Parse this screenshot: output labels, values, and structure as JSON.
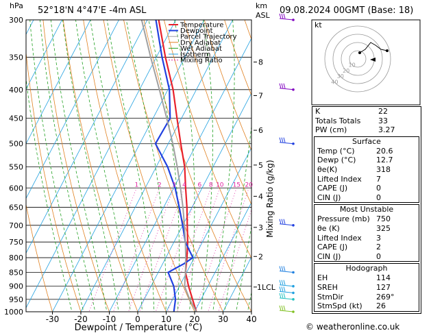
{
  "header": {
    "location": "52°18'N  4°47'E  -4m  ASL",
    "datetime": "09.08.2024  00GMT  (Base: 18)",
    "pressure_unit": "hPa",
    "height_unit": "km",
    "height_unit2": "ASL"
  },
  "chart_data": {
    "type": "line",
    "title": "52°18'N  4°47'E  -4m  ASL",
    "xlabel": "Dewpoint / Temperature (°C)",
    "ylabel": "hPa",
    "right_axis_label": "Mixing Ratio (g/kg)",
    "x_ticks": [
      -30,
      -20,
      -10,
      0,
      10,
      20,
      30,
      40
    ],
    "pressure_levels": [
      300,
      350,
      400,
      450,
      500,
      550,
      600,
      650,
      700,
      750,
      800,
      850,
      900,
      950,
      1000
    ],
    "height_ticks": [
      {
        "label": "8",
        "p": 357
      },
      {
        "label": "7",
        "p": 410
      },
      {
        "label": "6",
        "p": 473
      },
      {
        "label": "5",
        "p": 546
      },
      {
        "label": "4",
        "p": 621
      },
      {
        "label": "3",
        "p": 706
      },
      {
        "label": "2",
        "p": 796
      },
      {
        "label": "1LCL",
        "p": 903
      }
    ],
    "mixing_ratio_labels": [
      "1",
      "2",
      "3",
      "4",
      "6",
      "8",
      "10",
      "15",
      "20",
      "25"
    ],
    "legend": [
      "Temperature",
      "Dewpoint",
      "Parcel Trajectory",
      "Dry Adiabat",
      "Wet Adiabat",
      "Isotherm",
      "Mixing Ratio"
    ],
    "series": [
      {
        "name": "Temperature",
        "color": "#e8202a",
        "points": [
          [
            1000,
            20.6
          ],
          [
            950,
            17.0
          ],
          [
            900,
            13.2
          ],
          [
            850,
            9.6
          ],
          [
            800,
            7.4
          ],
          [
            750,
            4.8
          ],
          [
            700,
            1.6
          ],
          [
            650,
            -1.8
          ],
          [
            600,
            -5.8
          ],
          [
            550,
            -10.0
          ],
          [
            500,
            -15.6
          ],
          [
            450,
            -21.6
          ],
          [
            400,
            -28.2
          ],
          [
            350,
            -36.8
          ],
          [
            300,
            -46.0
          ]
        ]
      },
      {
        "name": "Dewpoint",
        "color": "#2040e0",
        "points": [
          [
            1000,
            12.7
          ],
          [
            950,
            11.0
          ],
          [
            900,
            8.0
          ],
          [
            850,
            3.5
          ],
          [
            820,
            7.5
          ],
          [
            800,
            9.5
          ],
          [
            750,
            4.0
          ],
          [
            700,
            0.0
          ],
          [
            650,
            -4.5
          ],
          [
            600,
            -9.5
          ],
          [
            550,
            -16.0
          ],
          [
            500,
            -24.5
          ],
          [
            450,
            -24.0
          ],
          [
            400,
            -29.5
          ],
          [
            350,
            -38.0
          ],
          [
            300,
            -47.0
          ]
        ]
      },
      {
        "name": "Parcel Trajectory",
        "color": "#a0a0a0",
        "points": [
          [
            1000,
            20.6
          ],
          [
            950,
            16.0
          ],
          [
            900,
            11.8
          ],
          [
            850,
            9.6
          ],
          [
            800,
            7.0
          ],
          [
            750,
            4.0
          ],
          [
            700,
            0.6
          ],
          [
            650,
            -3.2
          ],
          [
            600,
            -7.6
          ],
          [
            550,
            -12.6
          ],
          [
            500,
            -18.4
          ],
          [
            450,
            -25.2
          ],
          [
            400,
            -33.0
          ],
          [
            350,
            -42.0
          ],
          [
            300,
            -52.0
          ]
        ]
      }
    ],
    "wind_barbs": [
      {
        "p": 300,
        "color": "#8000c0"
      },
      {
        "p": 400,
        "color": "#8000c0"
      },
      {
        "p": 500,
        "color": "#2040e0"
      },
      {
        "p": 700,
        "color": "#2040e0"
      },
      {
        "p": 850,
        "color": "#2080e0"
      },
      {
        "p": 900,
        "color": "#20a0e0"
      },
      {
        "p": 925,
        "color": "#20a0e0"
      },
      {
        "p": 950,
        "color": "#20c0c0"
      },
      {
        "p": 1000,
        "color": "#80c020"
      }
    ]
  },
  "hodograph": {
    "label": "kt",
    "ring_labels": [
      "10",
      "20",
      "30",
      "40"
    ]
  },
  "indices": {
    "top": [
      {
        "label": "K",
        "value": "22"
      },
      {
        "label": "Totals Totals",
        "value": "33"
      },
      {
        "label": "PW (cm)",
        "value": "3.27"
      }
    ],
    "surface_title": "Surface",
    "surface": [
      {
        "label": "Temp (°C)",
        "value": "20.6"
      },
      {
        "label": "Dewp (°C)",
        "value": "12.7"
      },
      {
        "label": "θe(K)",
        "value": "318"
      },
      {
        "label": "Lifted Index",
        "value": "7"
      },
      {
        "label": "CAPE (J)",
        "value": "0"
      },
      {
        "label": "CIN (J)",
        "value": "0"
      }
    ],
    "unstable_title": "Most Unstable",
    "unstable": [
      {
        "label": "Pressure (mb)",
        "value": "750"
      },
      {
        "label": "θe (K)",
        "value": "325"
      },
      {
        "label": "Lifted Index",
        "value": "3"
      },
      {
        "label": "CAPE (J)",
        "value": "2"
      },
      {
        "label": "CIN (J)",
        "value": "0"
      }
    ],
    "hodo_title": "Hodograph",
    "hodo": [
      {
        "label": "EH",
        "value": "114"
      },
      {
        "label": "SREH",
        "value": "127"
      },
      {
        "label": "StmDir",
        "value": "269°"
      },
      {
        "label": "StmSpd (kt)",
        "value": "26"
      }
    ]
  },
  "footer": "© weatheronline.co.uk",
  "colors": {
    "temperature": "#e8202a",
    "dewpoint": "#2040e0",
    "parcel": "#a0a0a0",
    "dry_adiabat": "#e08020",
    "wet_adiabat": "#20a020",
    "isotherm": "#20a0e0",
    "mixing_ratio": "#e020a0"
  }
}
